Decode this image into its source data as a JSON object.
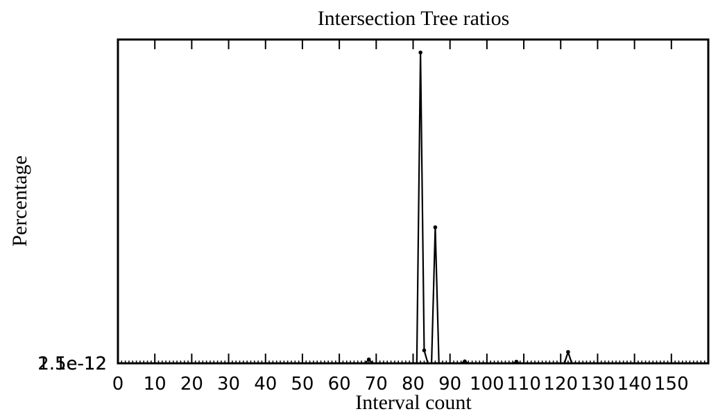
{
  "chart_data": {
    "type": "line",
    "title": "Intersection Tree ratios",
    "xlabel": "Interval count",
    "ylabel": "Percentage",
    "xlim": [
      0,
      160
    ],
    "ylim": [
      0,
      1
    ],
    "x_ticks": [
      0,
      10,
      20,
      30,
      40,
      50,
      60,
      70,
      80,
      90,
      100,
      110,
      120,
      130,
      140,
      150
    ],
    "x_tick_labels": [
      "0",
      "10",
      "20",
      "30",
      "40",
      "50",
      "60",
      "70",
      "80",
      "90",
      "100",
      "110",
      "120",
      "130",
      "140",
      "150"
    ],
    "y_tick_labels": [
      "2.5e-12",
      "1.5e-12",
      "1e-12"
    ],
    "grid": false,
    "color": "#000000",
    "x": [
      0,
      67,
      68,
      69,
      81,
      82,
      83,
      84,
      85,
      86,
      87,
      93,
      94,
      95,
      107,
      108,
      109,
      120,
      121,
      122,
      123,
      159
    ],
    "y": [
      0,
      0,
      0.012,
      0,
      0,
      0.96,
      0.04,
      0,
      0,
      0.42,
      0,
      0,
      0.006,
      0,
      0,
      0.005,
      0,
      0,
      0,
      0.035,
      0,
      0
    ]
  }
}
